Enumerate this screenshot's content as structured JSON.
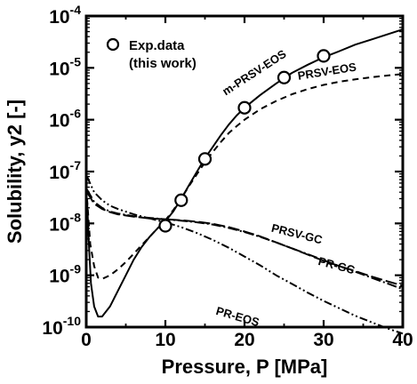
{
  "chart_data": {
    "type": "line",
    "xlabel": "Pressure, P [MPa]",
    "ylabel": "Solubility, y2 [-]",
    "xlim": [
      0,
      40
    ],
    "ylim": [
      1e-10,
      0.0001
    ],
    "yscale": "log",
    "x_ticks": [
      0,
      10,
      20,
      30,
      40
    ],
    "y_ticks": [
      {
        "value": 1e-10,
        "base": "10",
        "exp": "-10"
      },
      {
        "value": 1e-09,
        "base": "10",
        "exp": "-9"
      },
      {
        "value": 1e-08,
        "base": "10",
        "exp": "-8"
      },
      {
        "value": 1e-07,
        "base": "10",
        "exp": "-7"
      },
      {
        "value": 1e-06,
        "base": "10",
        "exp": "-6"
      },
      {
        "value": 1e-05,
        "base": "10",
        "exp": "-5"
      },
      {
        "value": 0.0001,
        "base": "10",
        "exp": "-4"
      }
    ],
    "grid": false,
    "legend": {
      "position": "top-left",
      "marker": "open-circle",
      "line1": "Exp.data",
      "line2": "(this work)"
    },
    "series": [
      {
        "name": "m-PRSV-EOS",
        "style": "solid",
        "x": [
          0.1,
          0.3,
          0.6,
          1,
          1.5,
          2,
          3,
          4,
          5,
          6,
          7,
          8,
          9,
          10,
          11,
          12,
          13,
          14,
          15,
          16,
          17,
          18,
          19,
          20,
          22,
          24,
          26,
          28,
          30,
          32,
          34,
          36,
          38,
          40
        ],
        "y": [
          3e-08,
          5e-09,
          7e-10,
          2.5e-10,
          1.6e-10,
          1.6e-10,
          2.5e-10,
          5e-10,
          1e-09,
          2e-09,
          3.5e-09,
          5.5e-09,
          8e-09,
          1.1e-08,
          1.7e-08,
          3e-08,
          5.5e-08,
          1e-07,
          1.8e-07,
          3e-07,
          5e-07,
          8e-07,
          1.2e-06,
          1.7e-06,
          3e-06,
          5e-06,
          8e-06,
          1.15e-05,
          1.6e-05,
          2.1e-05,
          2.8e-05,
          3.5e-05,
          4.4e-05,
          5.5e-05
        ]
      },
      {
        "name": "PRSV-EOS",
        "style": "dashed",
        "x": [
          0.1,
          0.5,
          1,
          1.5,
          2,
          3,
          4,
          5,
          6,
          7,
          8,
          9,
          10,
          11,
          12,
          13,
          14,
          15,
          16,
          17,
          18,
          19,
          20,
          22,
          24,
          26,
          28,
          30,
          32,
          34,
          36,
          38,
          40
        ],
        "y": [
          3e-08,
          4e-09,
          1.5e-09,
          9e-10,
          8.5e-10,
          1e-09,
          1.3e-09,
          1.8e-09,
          2.6e-09,
          3.8e-09,
          5.5e-09,
          8e-09,
          1.15e-08,
          1.8e-08,
          3e-08,
          5.3e-08,
          9e-08,
          1.5e-07,
          2.4e-07,
          3.7e-07,
          5.5e-07,
          7.5e-07,
          1e-06,
          1.6e-06,
          2.3e-06,
          3.1e-06,
          3.9e-06,
          4.7e-06,
          5.4e-06,
          6e-06,
          6.6e-06,
          7.1e-06,
          7.6e-06
        ]
      },
      {
        "name": "PRSV-GC",
        "style": "long-dash",
        "x": [
          0.1,
          1,
          2,
          3,
          4,
          6,
          8,
          10,
          12,
          14,
          16,
          18,
          20,
          22,
          24,
          26,
          28,
          30,
          32,
          34,
          36,
          38,
          40
        ],
        "y": [
          4e-08,
          2.4e-08,
          1.9e-08,
          1.65e-08,
          1.5e-08,
          1.35e-08,
          1.25e-08,
          1.2e-08,
          1.15e-08,
          1.08e-08,
          9.8e-09,
          8.5e-09,
          7e-09,
          5.6e-09,
          4.3e-09,
          3.3e-09,
          2.5e-09,
          1.9e-09,
          1.5e-09,
          1.2e-09,
          9.5e-10,
          7.7e-10,
          6.3e-10
        ]
      },
      {
        "name": "PR-GC",
        "style": "dash-dot",
        "x": [
          0.1,
          1,
          2,
          3,
          4,
          6,
          8,
          10,
          12,
          14,
          16,
          18,
          20,
          22,
          24,
          26,
          28,
          30,
          32,
          34,
          36,
          38,
          40
        ],
        "y": [
          4.5e-08,
          2.6e-08,
          2e-08,
          1.7e-08,
          1.55e-08,
          1.38e-08,
          1.28e-08,
          1.2e-08,
          1.13e-08,
          1.05e-08,
          9.5e-09,
          8.2e-09,
          6.8e-09,
          5.5e-09,
          4.3e-09,
          3.3e-09,
          2.55e-09,
          1.95e-09,
          1.5e-09,
          1.17e-09,
          9e-10,
          7e-10,
          5.4e-10
        ]
      },
      {
        "name": "PR-EOS",
        "style": "dash-dot-dot",
        "x": [
          0.1,
          1,
          2,
          3,
          4,
          6,
          8,
          10,
          12,
          14,
          16,
          18,
          20,
          22,
          24,
          26,
          28,
          30,
          32,
          34,
          36,
          38,
          40
        ],
        "y": [
          8e-08,
          4e-08,
          2.8e-08,
          2.2e-08,
          1.9e-08,
          1.5e-08,
          1.25e-08,
          1.05e-08,
          8.5e-09,
          6.5e-09,
          4.8e-09,
          3.4e-09,
          2.3e-09,
          1.55e-09,
          1e-09,
          6.8e-10,
          4.6e-10,
          3.2e-10,
          2.3e-10,
          1.65e-10,
          1.25e-10,
          9.5e-11,
          7.5e-11
        ]
      }
    ],
    "exp_data": {
      "x": [
        10,
        12,
        15,
        20,
        25,
        30
      ],
      "y": [
        9e-09,
        2.8e-08,
        1.75e-07,
        1.7e-06,
        6.5e-06,
        1.7e-05
      ]
    },
    "series_labels": [
      {
        "text": "m-PRSV-EOS",
        "x": 21.5,
        "y": 7e-06,
        "rotate": -33
      },
      {
        "text": "PRSV-EOS",
        "x": 30.5,
        "y": 7.2e-06,
        "rotate": -9
      },
      {
        "text": "PRSV-GC",
        "x": 26.5,
        "y": 5.3e-09,
        "rotate": 14
      },
      {
        "text": "PR-GC",
        "x": 31.5,
        "y": 1.3e-09,
        "rotate": 15
      },
      {
        "text": "PR-EOS",
        "x": 19,
        "y": 1.35e-10,
        "rotate": 16
      }
    ]
  }
}
